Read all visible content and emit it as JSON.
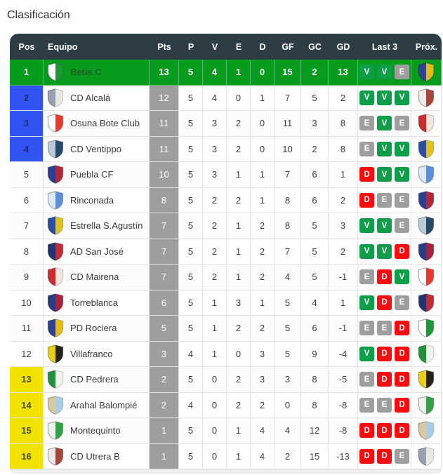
{
  "page_title": "Clasificación",
  "colors": {
    "header_bg": "#2e3c44",
    "champion_row": "#089c1e",
    "promotion_pos": "#3053f2",
    "relegation_pos": "#f2e202",
    "pts_column": "#9e9e9e",
    "win": "#0e9d48",
    "draw": "#9e9e9e",
    "loss": "#fa0b0f"
  },
  "table": {
    "columns": [
      {
        "key": "pos",
        "label": "Pos"
      },
      {
        "key": "equipo",
        "label": "Equipo"
      },
      {
        "key": "pts",
        "label": "Pts"
      },
      {
        "key": "p",
        "label": "P"
      },
      {
        "key": "v",
        "label": "V"
      },
      {
        "key": "e",
        "label": "E"
      },
      {
        "key": "d",
        "label": "D"
      },
      {
        "key": "gf",
        "label": "GF"
      },
      {
        "key": "gc",
        "label": "GC"
      },
      {
        "key": "gd",
        "label": "GD"
      },
      {
        "key": "last3",
        "label": "Last 3"
      },
      {
        "key": "prox",
        "label": "Próx."
      }
    ],
    "rows": [
      {
        "pos": 1,
        "zone": "champion",
        "team": "Betis C",
        "crest": {
          "primary": "#1d9638",
          "secondary": "#ffffff"
        },
        "pts": 13,
        "p": 5,
        "v": 4,
        "e": 1,
        "d": 0,
        "gf": 15,
        "gc": 2,
        "gd": 13,
        "last3": [
          "V",
          "V",
          "E"
        ],
        "next": {
          "primary": "#e7bb16",
          "secondary": "#32418f"
        }
      },
      {
        "pos": 2,
        "zone": "promotion",
        "team": "CD Alcalá",
        "crest": {
          "primary": "#e9e9e2",
          "secondary": "#9aa0ad"
        },
        "pts": 12,
        "p": 5,
        "v": 4,
        "e": 0,
        "d": 1,
        "gf": 7,
        "gc": 5,
        "gd": 2,
        "last3": [
          "V",
          "V",
          "V"
        ],
        "next": {
          "primary": "#a8453a",
          "secondary": "#f0e8e4"
        }
      },
      {
        "pos": 3,
        "zone": "promotion",
        "team": "Osuna Bote Club",
        "crest": {
          "primary": "#e8392b",
          "secondary": "#ffffff"
        },
        "pts": 11,
        "p": 5,
        "v": 3,
        "e": 2,
        "d": 0,
        "gf": 11,
        "gc": 3,
        "gd": 8,
        "last3": [
          "E",
          "V",
          "E"
        ],
        "next": {
          "primary": "#efe9df",
          "secondary": "#cf2a2e"
        }
      },
      {
        "pos": 4,
        "zone": "promotion",
        "team": "CD Ventippo",
        "crest": {
          "primary": "#274a68",
          "secondary": "#b9cbdb"
        },
        "pts": 11,
        "p": 5,
        "v": 3,
        "e": 2,
        "d": 0,
        "gf": 10,
        "gc": 2,
        "gd": 8,
        "last3": [
          "E",
          "V",
          "V"
        ],
        "next": {
          "primary": "#e4c21c",
          "secondary": "#2d4d9e"
        }
      },
      {
        "pos": 5,
        "zone": "none",
        "team": "Puebla CF",
        "crest": {
          "primary": "#b52735",
          "secondary": "#2c3f8f"
        },
        "pts": 10,
        "p": 5,
        "v": 3,
        "e": 1,
        "d": 1,
        "gf": 7,
        "gc": 6,
        "gd": 1,
        "last3": [
          "D",
          "V",
          "V"
        ],
        "next": {
          "primary": "#5b8fd9",
          "secondary": "#dce9f7"
        }
      },
      {
        "pos": 6,
        "zone": "none",
        "team": "Rinconada",
        "crest": {
          "primary": "#5b8fd9",
          "secondary": "#dce9f7"
        },
        "pts": 8,
        "p": 5,
        "v": 2,
        "e": 2,
        "d": 1,
        "gf": 8,
        "gc": 6,
        "gd": 2,
        "last3": [
          "D",
          "E",
          "E"
        ],
        "next": {
          "primary": "#b52735",
          "secondary": "#2c3f8f"
        }
      },
      {
        "pos": 7,
        "zone": "none",
        "team": "Estrella S.Agustín",
        "crest": {
          "primary": "#e4c21c",
          "secondary": "#2d4d9e"
        },
        "pts": 7,
        "p": 5,
        "v": 2,
        "e": 1,
        "d": 2,
        "gf": 8,
        "gc": 5,
        "gd": 3,
        "last3": [
          "V",
          "V",
          "E"
        ],
        "next": {
          "primary": "#274a68",
          "secondary": "#b9cbdb"
        }
      },
      {
        "pos": 8,
        "zone": "none",
        "team": "AD San José",
        "crest": {
          "primary": "#c22b33",
          "secondary": "#243271"
        },
        "pts": 7,
        "p": 5,
        "v": 2,
        "e": 1,
        "d": 2,
        "gf": 7,
        "gc": 5,
        "gd": 2,
        "last3": [
          "V",
          "V",
          "D"
        ],
        "next": {
          "primary": "#a82339",
          "secondary": "#2b3b85"
        }
      },
      {
        "pos": 9,
        "zone": "none",
        "team": "CD Mairena",
        "crest": {
          "primary": "#efe9df",
          "secondary": "#cf2a2e"
        },
        "pts": 7,
        "p": 5,
        "v": 2,
        "e": 1,
        "d": 2,
        "gf": 4,
        "gc": 5,
        "gd": -1,
        "last3": [
          "E",
          "D",
          "V"
        ],
        "next": {
          "primary": "#e8392b",
          "secondary": "#ffffff"
        }
      },
      {
        "pos": 10,
        "zone": "none",
        "team": "Torreblanca",
        "crest": {
          "primary": "#a82339",
          "secondary": "#2b3b85"
        },
        "pts": 6,
        "p": 5,
        "v": 1,
        "e": 3,
        "d": 1,
        "gf": 5,
        "gc": 4,
        "gd": 1,
        "last3": [
          "V",
          "D",
          "E"
        ],
        "next": {
          "primary": "#c22b33",
          "secondary": "#243271"
        }
      },
      {
        "pos": 11,
        "zone": "none",
        "team": "PD Rociera",
        "crest": {
          "primary": "#e7bb16",
          "secondary": "#32418f"
        },
        "pts": 5,
        "p": 5,
        "v": 1,
        "e": 2,
        "d": 2,
        "gf": 5,
        "gc": 6,
        "gd": -1,
        "last3": [
          "E",
          "E",
          "D"
        ],
        "next": {
          "primary": "#1d9638",
          "secondary": "#ffffff"
        }
      },
      {
        "pos": 12,
        "zone": "none",
        "team": "Villafranco",
        "crest": {
          "primary": "#24221e",
          "secondary": "#e7cf15"
        },
        "pts": 3,
        "p": 4,
        "v": 1,
        "e": 0,
        "d": 3,
        "gf": 5,
        "gc": 9,
        "gd": -4,
        "last3": [
          "V",
          "D",
          "D"
        ],
        "next": {
          "primary": "#f4f4ef",
          "secondary": "#23913d"
        }
      },
      {
        "pos": 13,
        "zone": "relegation",
        "team": "CD Pedrera",
        "crest": {
          "primary": "#f4f4ef",
          "secondary": "#23913d"
        },
        "pts": 2,
        "p": 5,
        "v": 0,
        "e": 2,
        "d": 3,
        "gf": 3,
        "gc": 8,
        "gd": -5,
        "last3": [
          "E",
          "D",
          "D"
        ],
        "next": {
          "primary": "#24221e",
          "secondary": "#e7cf15"
        }
      },
      {
        "pos": 14,
        "zone": "relegation",
        "team": "Arahal Balompié",
        "crest": {
          "primary": "#a9cce8",
          "secondary": "#d9c9a2"
        },
        "pts": 2,
        "p": 4,
        "v": 0,
        "e": 2,
        "d": 2,
        "gf": 0,
        "gc": 8,
        "gd": -8,
        "last3": [
          "E",
          "E",
          "D"
        ],
        "next": {
          "primary": "#31a047",
          "secondary": "#eaf4eb"
        }
      },
      {
        "pos": 15,
        "zone": "relegation",
        "team": "Montequinto",
        "crest": {
          "primary": "#31a047",
          "secondary": "#eaf4eb"
        },
        "pts": 1,
        "p": 5,
        "v": 0,
        "e": 1,
        "d": 4,
        "gf": 4,
        "gc": 12,
        "gd": -8,
        "last3": [
          "D",
          "D",
          "D"
        ],
        "next": {
          "primary": "#a9cce8",
          "secondary": "#d9c9a2"
        }
      },
      {
        "pos": 16,
        "zone": "relegation",
        "team": "CD Utrera B",
        "crest": {
          "primary": "#a8453a",
          "secondary": "#f0e8e4"
        },
        "pts": 1,
        "p": 5,
        "v": 0,
        "e": 1,
        "d": 4,
        "gf": 2,
        "gc": 15,
        "gd": -13,
        "last3": [
          "D",
          "D",
          "E"
        ],
        "next": {
          "primary": "#e9e9e2",
          "secondary": "#9aa0ad"
        }
      }
    ]
  }
}
